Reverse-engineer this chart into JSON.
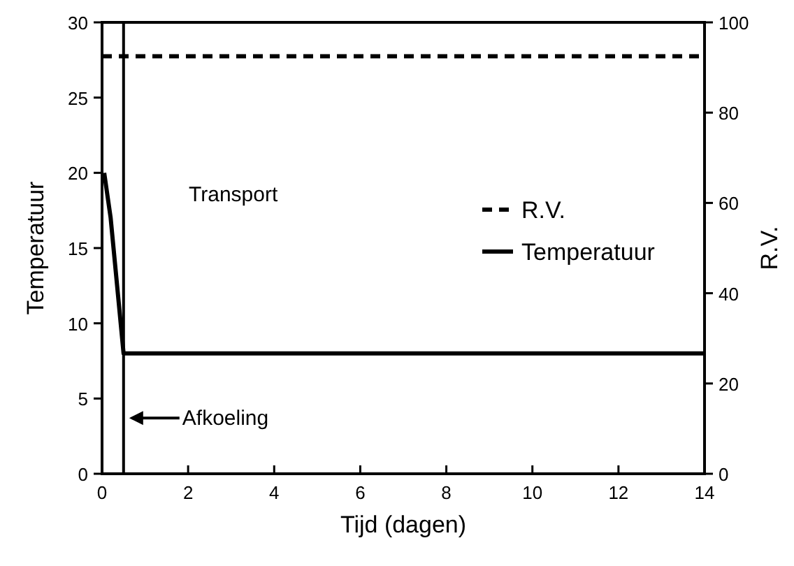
{
  "chart_data": {
    "type": "line",
    "xlabel": "Tijd (dagen)",
    "ylabel": "Temperatuur",
    "y2label": "R.V.",
    "xlim": [
      0,
      14
    ],
    "xticks": [
      0,
      2,
      4,
      6,
      8,
      10,
      12,
      14
    ],
    "ylim": [
      0,
      30
    ],
    "yticks": [
      0,
      5,
      10,
      15,
      20,
      25,
      30
    ],
    "y2lim": [
      0,
      100
    ],
    "y2ticks": [
      0,
      20,
      40,
      60,
      80,
      100
    ],
    "series": [
      {
        "name": "R.V.",
        "color": "#000000",
        "axis": "y2",
        "line_style": "dashed",
        "x": [
          0,
          14
        ],
        "values": [
          92.5,
          92.5
        ]
      },
      {
        "name": "Temperatuur",
        "color": "#000000",
        "line_style": "solid",
        "x": [
          0.05,
          0.1,
          0.2,
          0.3,
          0.4,
          0.5,
          14
        ],
        "values": [
          20,
          19,
          17,
          14,
          11,
          8,
          8
        ]
      }
    ],
    "ref_lines": [
      {
        "axis": "x",
        "value": 0.5,
        "color": "#000000",
        "line_style": "solid"
      }
    ],
    "annotations": [
      "Transport",
      {
        "text": "Afkoeling",
        "x": 0.5,
        "y": 3.7
      }
    ],
    "legend": "right",
    "grid": false
  }
}
